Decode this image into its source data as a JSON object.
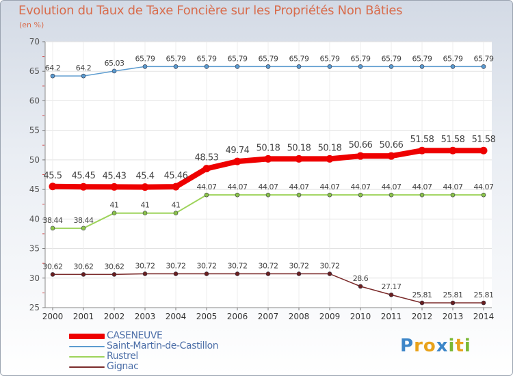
{
  "chart_data": {
    "type": "line",
    "title": "Evolution du Taux de Taxe Foncière sur les Propriétés Non Bâties",
    "subtitle": "(en %)",
    "xlabel": "",
    "ylabel": "",
    "ylim": [
      25,
      70
    ],
    "yticks": [
      25,
      30,
      35,
      40,
      45,
      50,
      55,
      60,
      65,
      70
    ],
    "grid": true,
    "legend_position": "bottom-left",
    "categories": [
      "2000",
      "2001",
      "2002",
      "2003",
      "2004",
      "2005",
      "2006",
      "2007",
      "2008",
      "2009",
      "2010",
      "2011",
      "2012",
      "2013",
      "2014"
    ],
    "series": [
      {
        "name": "CASENEUVE",
        "color": "#ee0000",
        "values": [
          45.5,
          45.45,
          45.43,
          45.4,
          45.46,
          48.53,
          49.74,
          50.18,
          50.18,
          50.18,
          50.66,
          50.66,
          51.58,
          51.58,
          51.58
        ],
        "labels": [
          "45.5",
          "45.45",
          "45.43",
          "45.4",
          "45.46",
          "48.53",
          "49.74",
          "50.18",
          "50.18",
          "50.18",
          "50.66",
          "50.66",
          "51.58",
          "51.58",
          "51.58"
        ]
      },
      {
        "name": "Saint-Martin-de-Castillon",
        "color": "#5b9bcf",
        "values": [
          64.2,
          64.2,
          65.03,
          65.79,
          65.79,
          65.79,
          65.79,
          65.79,
          65.79,
          65.79,
          65.79,
          65.79,
          65.79,
          65.79,
          65.79
        ],
        "labels": [
          "64.2",
          "64.2",
          "65.03",
          "65.79",
          "65.79",
          "65.79",
          "65.79",
          "65.79",
          "65.79",
          "65.79",
          "65.79",
          "65.79",
          "65.79",
          "65.79",
          "65.79"
        ]
      },
      {
        "name": "Rustrel",
        "color": "#9dd35a",
        "values": [
          38.44,
          38.44,
          41,
          41,
          41,
          44.07,
          44.07,
          44.07,
          44.07,
          44.07,
          44.07,
          44.07,
          44.07,
          44.07,
          44.07
        ],
        "labels": [
          "38.44",
          "38.44",
          "41",
          "41",
          "41",
          "44.07",
          "44.07",
          "44.07",
          "44.07",
          "44.07",
          "44.07",
          "44.07",
          "44.07",
          "44.07",
          "44.07"
        ]
      },
      {
        "name": "Gignac",
        "color": "#7a2a2a",
        "values": [
          30.62,
          30.62,
          30.62,
          30.72,
          30.72,
          30.72,
          30.72,
          30.72,
          30.72,
          30.72,
          28.6,
          27.17,
          25.81,
          25.81,
          25.81
        ],
        "labels": [
          "30.62",
          "30.62",
          "30.62",
          "30.72",
          "30.72",
          "30.72",
          "30.72",
          "30.72",
          "30.72",
          "30.72",
          "28.6",
          "27.17",
          "25.81",
          "25.81",
          "25.81"
        ]
      }
    ]
  },
  "logo": {
    "text": "Proxiti",
    "colors": [
      "#3d86c8",
      "#e8a21b",
      "#e8a21b",
      "#3d86c8",
      "#7ab834",
      "#e8a21b",
      "#7ab834"
    ]
  }
}
